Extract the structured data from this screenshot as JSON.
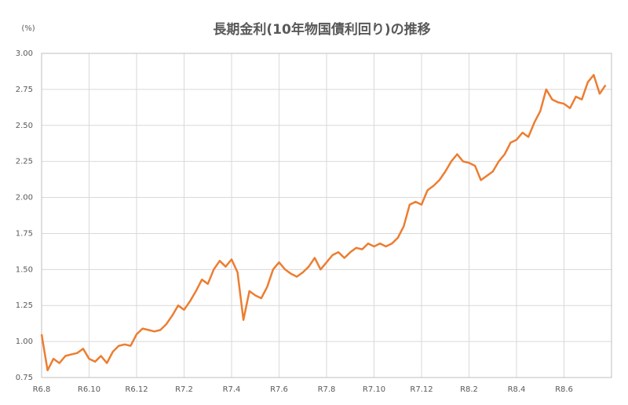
{
  "chart_data": {
    "type": "line",
    "title": "長期金利(10年物国債利回り)の推移",
    "y_unit": "(%)",
    "categories": [
      "R6.8",
      null,
      null,
      null,
      null,
      null,
      null,
      null,
      "R6.10",
      null,
      null,
      null,
      null,
      null,
      null,
      null,
      "R6.12",
      null,
      null,
      null,
      null,
      null,
      null,
      null,
      "R7.2",
      null,
      null,
      null,
      null,
      null,
      null,
      null,
      "R7.4",
      null,
      null,
      null,
      null,
      null,
      null,
      null,
      "R7.6",
      null,
      null,
      null,
      null,
      null,
      null,
      null,
      "R7.8",
      null,
      null,
      null,
      null,
      null,
      null,
      null,
      "R7.10",
      null,
      null,
      null,
      null,
      null,
      null,
      null,
      "R7.12",
      null,
      null,
      null,
      null,
      null,
      null,
      null,
      "R8.2",
      null,
      null,
      null,
      null,
      null,
      null,
      null,
      "R8.4",
      null,
      null,
      null,
      null,
      null,
      null,
      null,
      "R8.6",
      null,
      null,
      null,
      null,
      null,
      null,
      null
    ],
    "series": [
      {
        "name": "長期金利",
        "color": "#ed7d31",
        "values": [
          1.05,
          0.8,
          0.88,
          0.85,
          0.9,
          0.91,
          0.92,
          0.95,
          0.88,
          0.86,
          0.9,
          0.85,
          0.93,
          0.97,
          0.98,
          0.97,
          1.05,
          1.09,
          1.08,
          1.07,
          1.08,
          1.12,
          1.18,
          1.25,
          1.22,
          1.28,
          1.35,
          1.43,
          1.4,
          1.5,
          1.56,
          1.52,
          1.57,
          1.48,
          1.15,
          1.35,
          1.32,
          1.3,
          1.38,
          1.5,
          1.55,
          1.5,
          1.47,
          1.45,
          1.48,
          1.52,
          1.58,
          1.5,
          1.55,
          1.6,
          1.62,
          1.58,
          1.62,
          1.65,
          1.64,
          1.68,
          1.66,
          1.68,
          1.66,
          1.68,
          1.72,
          1.8,
          1.95,
          1.97,
          1.95,
          2.05,
          2.08,
          2.12,
          2.18,
          2.25,
          2.3,
          2.25,
          2.24,
          2.22,
          2.12,
          2.15,
          2.18,
          2.25,
          2.3,
          2.38,
          2.4,
          2.45,
          2.42,
          2.52,
          2.6,
          2.75,
          2.68,
          2.66,
          2.65,
          2.62,
          2.7,
          2.68,
          2.8,
          2.85,
          2.72,
          2.78
        ]
      }
    ],
    "ylim": [
      0.75,
      3
    ],
    "yticks": [
      {
        "value": 0.75,
        "label": "0.75"
      },
      {
        "value": 1,
        "label": "1.00"
      },
      {
        "value": 1.25,
        "label": "1.25"
      },
      {
        "value": 1.5,
        "label": "1.50"
      },
      {
        "value": 1.75,
        "label": "1.75"
      },
      {
        "value": 2,
        "label": "2.00"
      },
      {
        "value": 2.25,
        "label": "2.25"
      },
      {
        "value": 2.5,
        "label": "2.50"
      },
      {
        "value": 2.75,
        "label": "2.75"
      },
      {
        "value": 3,
        "label": "3.00"
      }
    ],
    "grid": true
  }
}
